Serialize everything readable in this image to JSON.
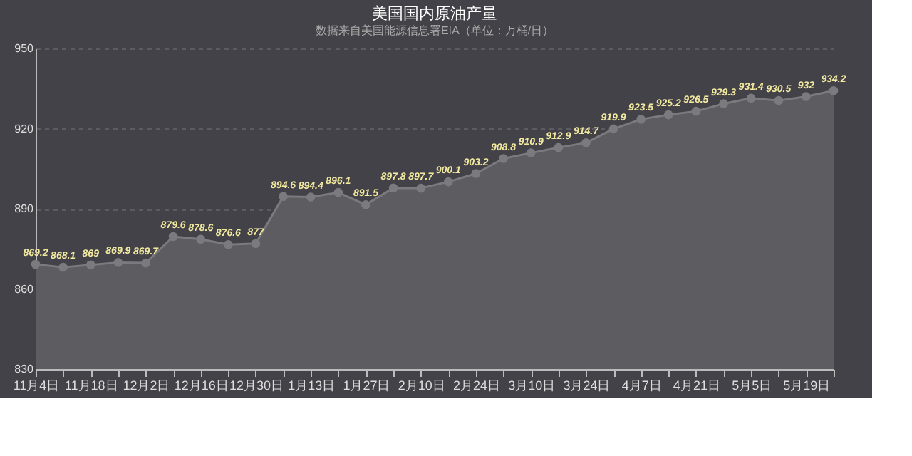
{
  "chart_data": {
    "type": "area",
    "title": "美国国内原油产量",
    "subtitle": "数据来自美国能源信息署EIA（单位：万桶/日）",
    "categories": [
      "11月4日",
      null,
      "11月18日",
      null,
      "12月2日",
      null,
      "12月16日",
      null,
      "12月30日",
      null,
      "1月13日",
      null,
      "1月27日",
      null,
      "2月10日",
      null,
      "2月24日",
      null,
      "3月10日",
      null,
      "3月24日",
      null,
      "4月7日",
      null,
      "4月21日",
      null,
      "5月5日",
      null,
      "5月19日",
      null
    ],
    "series": [
      {
        "color": "#7b7a7f",
        "values": [
          869.2,
          868.1,
          869,
          869.9,
          869.7,
          879.6,
          878.6,
          876.6,
          877,
          894.6,
          894.4,
          896.1,
          891.5,
          897.8,
          897.7,
          900.1,
          903.2,
          908.8,
          910.9,
          912.9,
          914.7,
          919.9,
          923.5,
          925.2,
          926.5,
          929.3,
          931.4,
          930.5,
          932,
          934.2
        ]
      }
    ],
    "ylim": [
      830,
      950
    ],
    "yticks": [
      830,
      860,
      890,
      920,
      950
    ],
    "grid": "y",
    "marker": "circle",
    "data_labels": true
  }
}
